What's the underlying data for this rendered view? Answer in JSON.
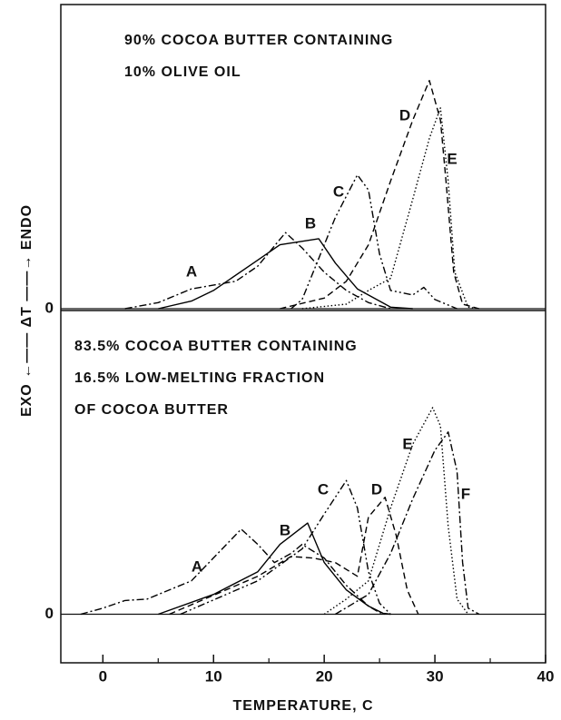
{
  "chart_data": [
    {
      "type": "line",
      "title_lines": [
        "90% COCOA BUTTER CONTAINING",
        "10% OLIVE OIL"
      ],
      "ylabel": "EXO ←—— ΔT ——→ ENDO",
      "xlim": [
        -3.8,
        40
      ],
      "ylim": [
        -0.6,
        100
      ],
      "yticks": [
        0
      ],
      "grid": true,
      "series": [
        {
          "name": "A",
          "color": "#000",
          "dash": "dashdot",
          "x": [
            2,
            5,
            8,
            12,
            14,
            16.5,
            18,
            20,
            22,
            24,
            26
          ],
          "values": [
            0,
            2,
            6.5,
            9,
            14,
            25,
            20,
            12,
            6,
            2,
            0
          ]
        },
        {
          "name": "B",
          "color": "#000",
          "dash": "solid",
          "x": [
            5,
            8,
            10,
            14,
            16,
            19.5,
            21,
            23,
            26,
            28
          ],
          "values": [
            0,
            2.5,
            6,
            16,
            21,
            23,
            15,
            6.5,
            0.5,
            0
          ]
        },
        {
          "name": "C",
          "color": "#000",
          "dash": "dashdotdot",
          "x": [
            17,
            18,
            19,
            21,
            23,
            24,
            25,
            26,
            28,
            29,
            30,
            32
          ],
          "values": [
            0,
            3,
            12,
            30,
            44,
            39,
            18,
            6,
            4.5,
            7,
            3,
            0
          ]
        },
        {
          "name": "D",
          "color": "#000",
          "dash": "dashed",
          "x": [
            16,
            20,
            22,
            24,
            26,
            28,
            29.5,
            30.5,
            31,
            31.7,
            32.5,
            34
          ],
          "values": [
            0,
            3.5,
            9,
            21,
            42,
            62,
            75,
            62,
            42,
            12,
            1.5,
            0
          ]
        },
        {
          "name": "E",
          "color": "#000",
          "dash": "dotted",
          "x": [
            18,
            22,
            24,
            26,
            28,
            29.5,
            30.5,
            31.2,
            31.8,
            33,
            34
          ],
          "values": [
            0,
            1.5,
            6,
            10,
            36,
            56,
            66,
            42,
            12,
            0.5,
            0
          ]
        }
      ]
    },
    {
      "type": "line",
      "title_lines": [
        "83.5% COCOA BUTTER CONTAINING",
        "16.5% LOW-MELTING FRACTION",
        "OF COCOA BUTTER"
      ],
      "xlabel": "TEMPERATURE, C",
      "xlim": [
        -3.8,
        40
      ],
      "xticks": [
        0,
        10,
        20,
        30,
        40
      ],
      "xminor_ticks": [
        5,
        15,
        25,
        35
      ],
      "ylim": [
        -16,
        100
      ],
      "yticks": [
        0
      ],
      "grid": true,
      "series": [
        {
          "name": "A",
          "color": "#000",
          "dash": "dashdot",
          "x": [
            -2,
            0,
            2,
            4,
            8,
            12.5,
            14,
            15.5,
            17,
            18,
            20,
            22,
            24,
            25,
            26
          ],
          "values": [
            0,
            2,
            4.5,
            5,
            11,
            28,
            23,
            17,
            20,
            23,
            18.5,
            9.5,
            2.7,
            0.5,
            0
          ]
        },
        {
          "name": "B",
          "color": "#000",
          "dash": "solid",
          "x": [
            5,
            10,
            14,
            16,
            18.5,
            20,
            22,
            24,
            25.5
          ],
          "values": [
            0,
            6.5,
            14,
            23,
            30,
            17,
            8,
            2.7,
            0
          ]
        },
        {
          "name": "C",
          "color": "#000",
          "dash": "dashdotdot",
          "x": [
            7,
            14,
            18,
            20,
            22,
            23,
            24,
            25,
            26
          ],
          "values": [
            0,
            11,
            21.5,
            33,
            44,
            35,
            14,
            3.6,
            0
          ]
        },
        {
          "name": "D",
          "color": "#000",
          "dash": "dashed",
          "x": [
            6,
            14,
            17,
            19,
            21,
            23,
            24,
            25.5,
            26.5,
            27.5,
            28.5
          ],
          "values": [
            0,
            12.5,
            19,
            18.5,
            17,
            12.5,
            32,
            38.5,
            26,
            8,
            0
          ]
        },
        {
          "name": "E",
          "color": "#000",
          "dash": "dotted",
          "x": [
            20,
            22,
            24,
            26,
            28,
            29.8,
            30.5,
            31.2,
            32,
            33
          ],
          "values": [
            0,
            5,
            11,
            35,
            56,
            68,
            62,
            29,
            5,
            0
          ]
        },
        {
          "name": "F",
          "color": "#000",
          "dash": "dashdot",
          "x": [
            21,
            24,
            26,
            28,
            30,
            31.2,
            32,
            32.5,
            33,
            34
          ],
          "values": [
            0,
            6.5,
            20,
            38,
            54,
            60,
            47,
            17,
            2,
            0
          ]
        }
      ]
    }
  ]
}
